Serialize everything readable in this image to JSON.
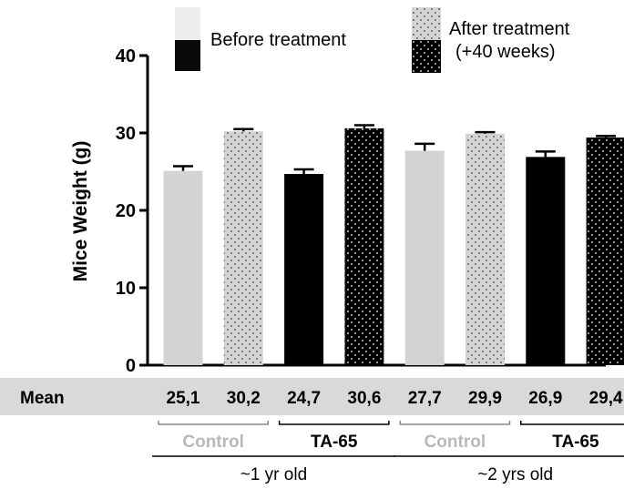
{
  "chart_data": {
    "type": "bar",
    "ylabel": "Mice Weight (g)",
    "ylim": [
      0,
      40
    ],
    "yticks": [
      0,
      10,
      20,
      30,
      40
    ],
    "legend": [
      {
        "label": "Before treatment",
        "pattern": "light-gray / black"
      },
      {
        "label": "After treatment\n(+40 weeks)",
        "pattern": "dotted light-gray / dotted black"
      }
    ],
    "bars": [
      {
        "value": 25.1,
        "error": 0.6,
        "treatment": "Control",
        "age": "~1 yr old",
        "timepoint": "Before treatment"
      },
      {
        "value": 30.2,
        "error": 0.3,
        "treatment": "Control",
        "age": "~1 yr old",
        "timepoint": "After treatment"
      },
      {
        "value": 24.7,
        "error": 0.6,
        "treatment": "TA-65",
        "age": "~1 yr old",
        "timepoint": "Before treatment"
      },
      {
        "value": 30.6,
        "error": 0.4,
        "treatment": "TA-65",
        "age": "~1 yr old",
        "timepoint": "After treatment"
      },
      {
        "value": 27.7,
        "error": 0.9,
        "treatment": "Control",
        "age": "~2 yrs old",
        "timepoint": "Before treatment"
      },
      {
        "value": 29.9,
        "error": 0.2,
        "treatment": "Control",
        "age": "~2 yrs old",
        "timepoint": "After treatment"
      },
      {
        "value": 26.9,
        "error": 0.7,
        "treatment": "TA-65",
        "age": "~2 yrs old",
        "timepoint": "Before treatment"
      },
      {
        "value": 29.4,
        "error": 0.2,
        "treatment": "TA-65",
        "age": "~2 yrs old",
        "timepoint": "After treatment"
      }
    ],
    "mean_row": {
      "label": "Mean",
      "values": [
        "25,1",
        "30,2",
        "24,7",
        "30,6",
        "27,7",
        "29,9",
        "26,9",
        "29,4"
      ]
    },
    "treatment_groups": [
      "Control",
      "TA-65",
      "Control",
      "TA-65"
    ],
    "age_groups": [
      "~1 yr old",
      "~2 yrs old"
    ]
  },
  "colors": {
    "control": "#d3d3d3",
    "ta65": "#000000",
    "control_dots": "#444444",
    "ta65_dots": "#ffffff",
    "mean_band": "#d9d9d9",
    "control_label": "#b9b9b9",
    "ta65_label": "#000000"
  }
}
